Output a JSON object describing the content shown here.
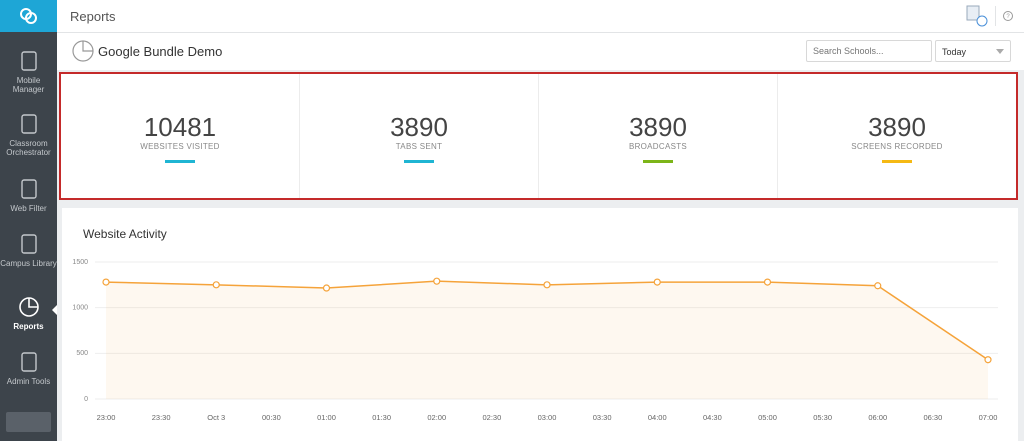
{
  "top_bar": {
    "title": "Reports"
  },
  "sidebar": {
    "items": [
      {
        "label": "Mobile Manager"
      },
      {
        "label": "Classroom Orchestrator"
      },
      {
        "label": "Web Filter"
      },
      {
        "label": "Campus Library"
      },
      {
        "label": "Reports",
        "active": true
      },
      {
        "label": "Admin Tools"
      }
    ]
  },
  "header": {
    "title": "Google Bundle Demo",
    "search_placeholder": "Search Schools...",
    "date_range": "Today"
  },
  "stats": [
    {
      "value": 10481,
      "label": "WEBSITES VISITED",
      "color": "#1fb5d3"
    },
    {
      "value": 3890,
      "label": "TABS SENT",
      "color": "#1fb5d3"
    },
    {
      "value": 3890,
      "label": "BROADCASTS",
      "color": "#7cb518"
    },
    {
      "value": 3890,
      "label": "SCREENS RECORDED",
      "color": "#f5b914"
    }
  ],
  "chart_data": {
    "type": "line",
    "title": "Website Activity",
    "x": [
      "23:00",
      "Oct 3",
      "01:00",
      "02:00",
      "03:00",
      "04:00",
      "05:00",
      "06:00",
      "07:00"
    ],
    "xticks": [
      "23:00",
      "23:30",
      "Oct 3",
      "00:30",
      "01:00",
      "01:30",
      "02:00",
      "02:30",
      "03:00",
      "03:30",
      "04:00",
      "04:30",
      "05:00",
      "05:30",
      "06:00",
      "06:30",
      "07:00"
    ],
    "series": [
      {
        "color": "#f5a33a",
        "values": [
          1280,
          1250,
          1215,
          1290,
          1250,
          1280,
          1280,
          1240,
          430
        ]
      }
    ],
    "ylim": [
      0,
      1500
    ],
    "yticks": [
      0,
      500,
      1000,
      1500
    ],
    "grid": true
  }
}
